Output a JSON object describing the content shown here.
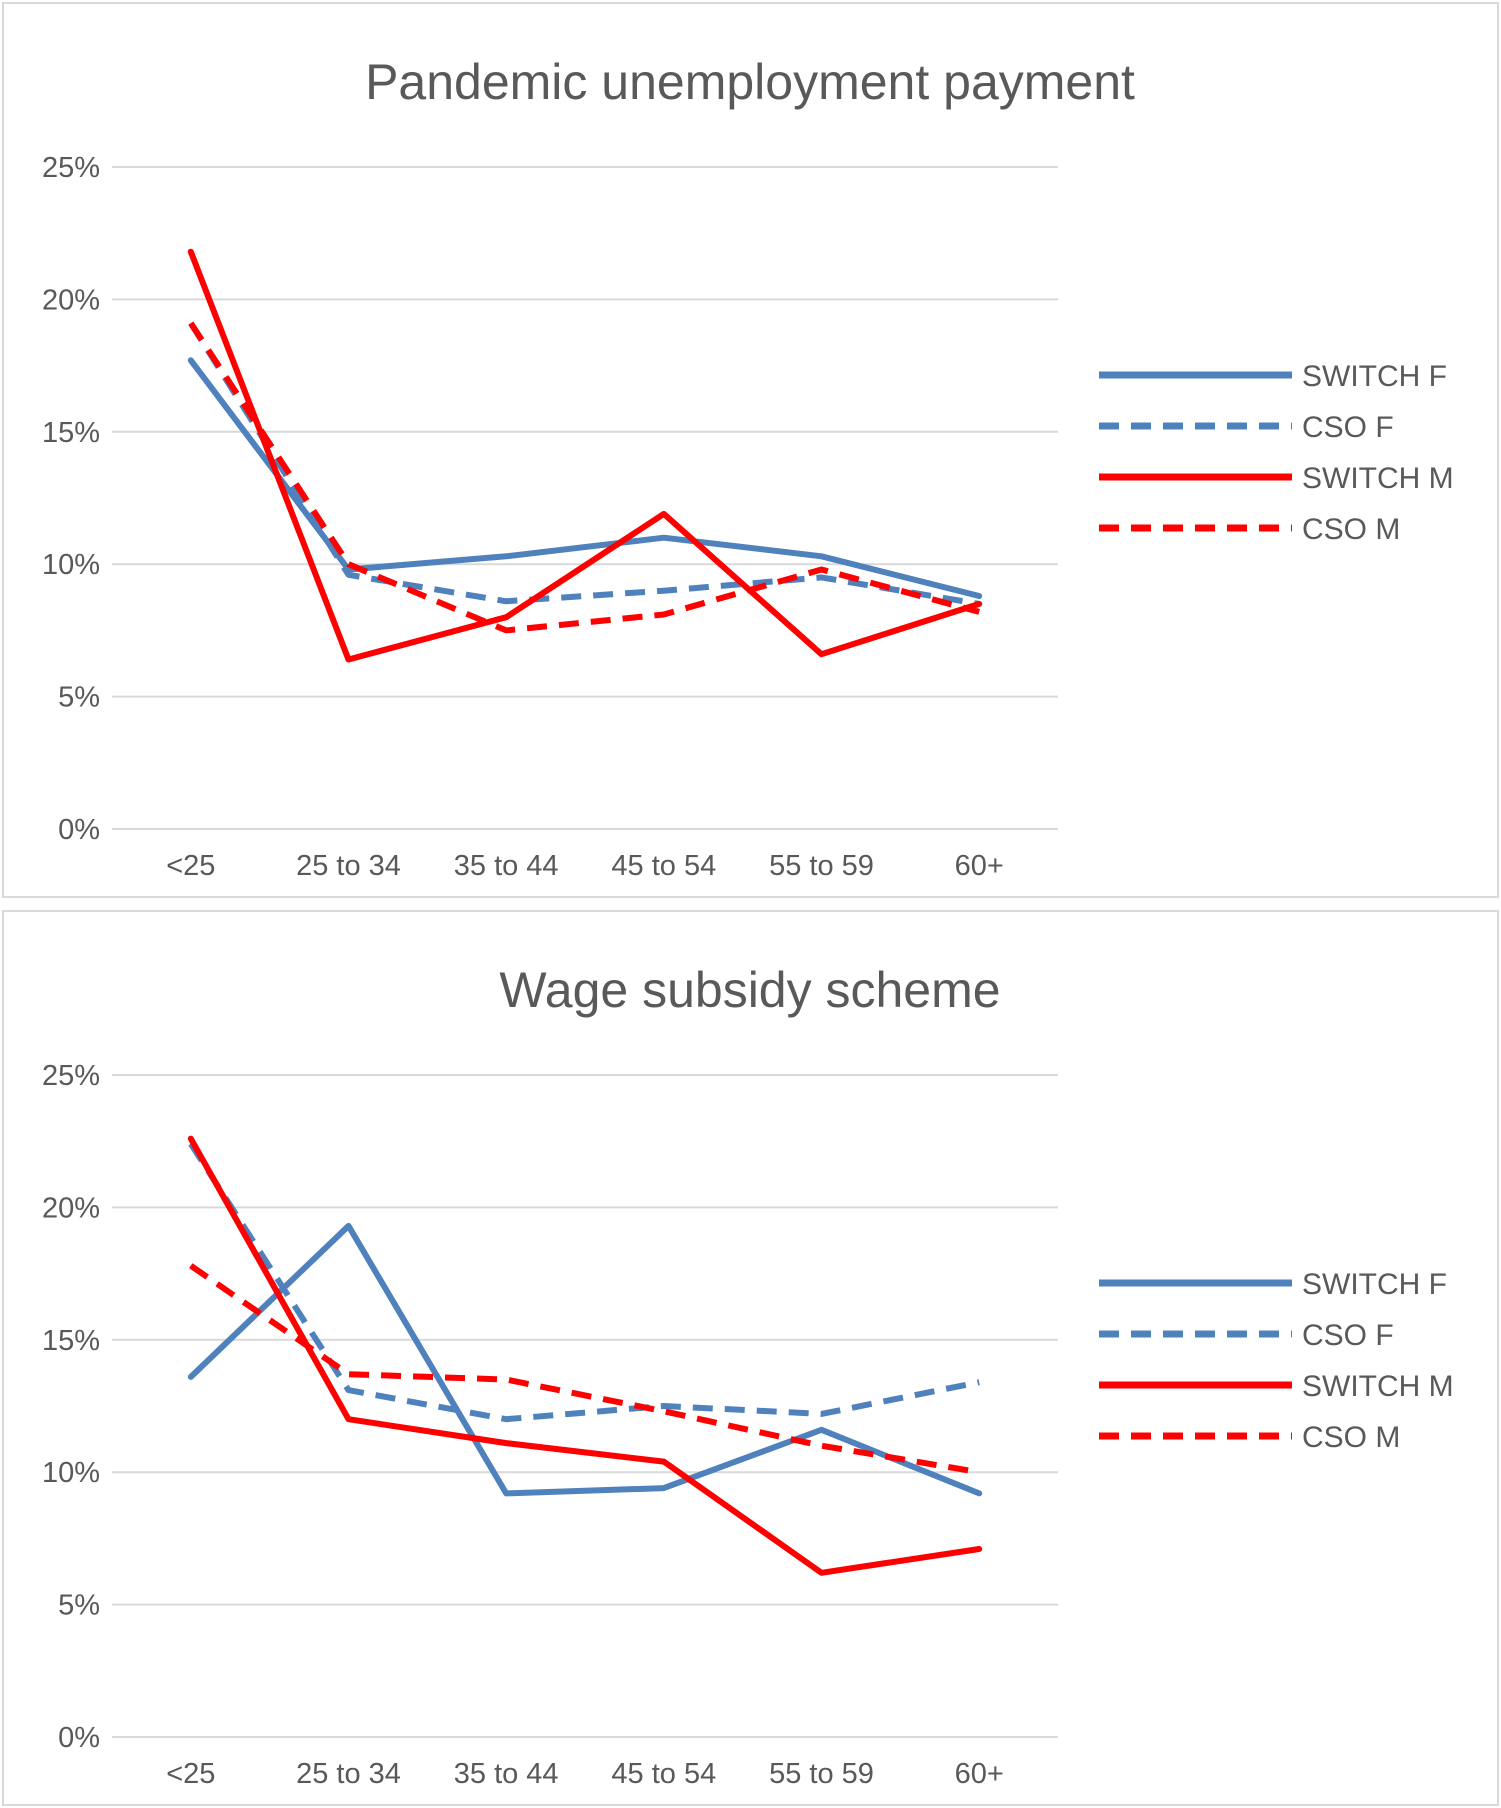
{
  "chart_data": [
    {
      "type": "line",
      "title": "Pandemic unemployment payment",
      "categories": [
        "<25",
        "25 to 34",
        "35 to 44",
        "45 to 54",
        "55 to 59",
        "60+"
      ],
      "yticks": [
        "0%",
        "5%",
        "10%",
        "15%",
        "20%",
        "25%"
      ],
      "ylim": [
        0,
        25
      ],
      "grid": true,
      "legend_position": "right",
      "series": [
        {
          "name": "SWITCH F",
          "values": [
            17.7,
            9.8,
            10.3,
            11.0,
            10.3,
            8.8
          ],
          "color": "#4f81bd",
          "dashed": false
        },
        {
          "name": "CSO F",
          "values": [
            19.1,
            9.6,
            8.6,
            9.0,
            9.5,
            8.5
          ],
          "color": "#4f81bd",
          "dashed": true
        },
        {
          "name": "SWITCH M",
          "values": [
            21.8,
            6.4,
            8.0,
            11.9,
            6.6,
            8.5
          ],
          "color": "#ff0000",
          "dashed": false
        },
        {
          "name": "CSO M",
          "values": [
            19.1,
            10.0,
            7.5,
            8.1,
            9.8,
            8.2
          ],
          "color": "#ff0000",
          "dashed": true
        }
      ]
    },
    {
      "type": "line",
      "title": "Wage subsidy scheme",
      "categories": [
        "<25",
        "25 to 34",
        "35 to 44",
        "45 to 54",
        "55 to 59",
        "60+"
      ],
      "yticks": [
        "0%",
        "5%",
        "10%",
        "15%",
        "20%",
        "25%"
      ],
      "ylim": [
        0,
        25
      ],
      "grid": true,
      "legend_position": "right",
      "series": [
        {
          "name": "SWITCH F",
          "values": [
            13.6,
            19.3,
            9.2,
            9.4,
            11.6,
            9.2
          ],
          "color": "#4f81bd",
          "dashed": false
        },
        {
          "name": "CSO F",
          "values": [
            22.4,
            13.1,
            12.0,
            12.5,
            12.2,
            13.4
          ],
          "color": "#4f81bd",
          "dashed": true
        },
        {
          "name": "SWITCH M",
          "values": [
            22.6,
            12.0,
            11.1,
            10.4,
            6.2,
            7.1
          ],
          "color": "#ff0000",
          "dashed": false
        },
        {
          "name": "CSO M",
          "values": [
            17.8,
            13.7,
            13.5,
            12.3,
            11.0,
            10.0
          ],
          "color": "#ff0000",
          "dashed": true
        }
      ]
    }
  ]
}
